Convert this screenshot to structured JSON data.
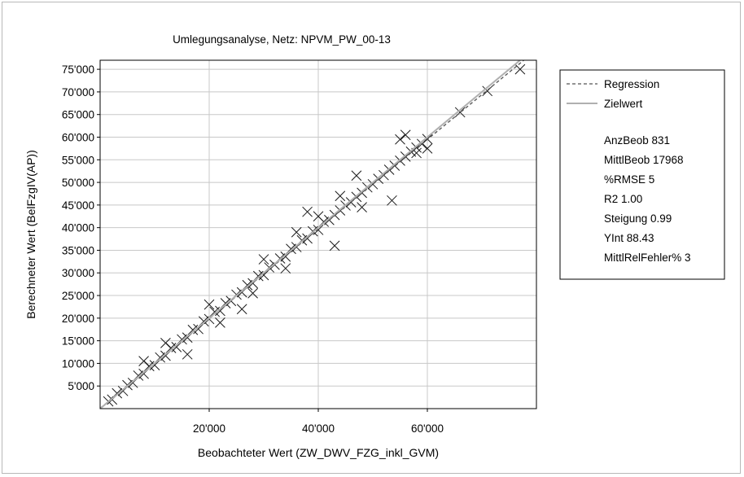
{
  "chart_data": {
    "type": "scatter",
    "title": "Umlegungsanalyse, Netz: NPVM_PW_00-13",
    "xlabel": "Beobachteter Wert (ZW_DWV_FZG_inkl_GVM)",
    "ylabel": "Berechneter Wert (BelFzgIV(AP))",
    "xlim": [
      0,
      80000
    ],
    "ylim": [
      0,
      77000
    ],
    "x_ticks": [
      20000,
      40000,
      60000
    ],
    "x_tick_labels": [
      "20'000",
      "40'000",
      "60'000"
    ],
    "y_ticks": [
      5000,
      10000,
      15000,
      20000,
      25000,
      30000,
      35000,
      40000,
      45000,
      50000,
      55000,
      60000,
      65000,
      70000,
      75000
    ],
    "y_tick_labels": [
      "5'000",
      "10'000",
      "15'000",
      "20'000",
      "25'000",
      "30'000",
      "35'000",
      "40'000",
      "45'000",
      "50'000",
      "55'000",
      "60'000",
      "65'000",
      "70'000",
      "75'000"
    ],
    "grid": true,
    "legend_position": "right",
    "series": [
      {
        "name": "Regression",
        "line": [
          [
            0,
            88.43
          ],
          [
            80000,
            79288.43
          ]
        ],
        "style": "dashed"
      },
      {
        "name": "Zielwert",
        "line": [
          [
            0,
            0
          ],
          [
            80000,
            80000
          ]
        ],
        "style": "solid"
      }
    ],
    "points": [
      [
        1500,
        1600
      ],
      [
        2200,
        2000
      ],
      [
        3100,
        3400
      ],
      [
        4200,
        3900
      ],
      [
        5000,
        5200
      ],
      [
        6000,
        5700
      ],
      [
        7000,
        7300
      ],
      [
        8000,
        7700
      ],
      [
        9000,
        9400
      ],
      [
        10000,
        9600
      ],
      [
        11000,
        11300
      ],
      [
        12000,
        11700
      ],
      [
        13000,
        13400
      ],
      [
        14000,
        13600
      ],
      [
        15000,
        15300
      ],
      [
        16000,
        15700
      ],
      [
        17000,
        17400
      ],
      [
        18000,
        17600
      ],
      [
        19000,
        19300
      ],
      [
        20000,
        19800
      ],
      [
        21000,
        21400
      ],
      [
        22000,
        21600
      ],
      [
        23000,
        23300
      ],
      [
        24000,
        23800
      ],
      [
        25000,
        25200
      ],
      [
        26000,
        25700
      ],
      [
        27000,
        27300
      ],
      [
        28000,
        27700
      ],
      [
        29000,
        29300
      ],
      [
        30000,
        29500
      ],
      [
        31000,
        31200
      ],
      [
        32000,
        31800
      ],
      [
        33000,
        33200
      ],
      [
        34000,
        33600
      ],
      [
        35000,
        35300
      ],
      [
        36000,
        35700
      ],
      [
        37000,
        37200
      ],
      [
        38000,
        37600
      ],
      [
        39000,
        39200
      ],
      [
        40000,
        39500
      ],
      [
        41000,
        41300
      ],
      [
        42000,
        41700
      ],
      [
        43000,
        42800
      ],
      [
        44000,
        43800
      ],
      [
        45000,
        44900
      ],
      [
        46000,
        45600
      ],
      [
        47000,
        46800
      ],
      [
        48000,
        47700
      ],
      [
        49000,
        48900
      ],
      [
        50000,
        49600
      ],
      [
        51000,
        50800
      ],
      [
        52000,
        51600
      ],
      [
        53000,
        52800
      ],
      [
        54000,
        53700
      ],
      [
        55000,
        54800
      ],
      [
        56000,
        55700
      ],
      [
        57000,
        56800
      ],
      [
        58000,
        57700
      ],
      [
        59000,
        58500
      ],
      [
        60000,
        59600
      ],
      [
        66000,
        65500
      ],
      [
        71000,
        70200
      ],
      [
        77000,
        75000
      ],
      [
        53500,
        46000
      ],
      [
        43000,
        36000
      ],
      [
        38000,
        43500
      ],
      [
        47000,
        51500
      ],
      [
        55000,
        59500
      ],
      [
        58000,
        56500
      ],
      [
        30000,
        33000
      ],
      [
        26000,
        22000
      ],
      [
        20000,
        23000
      ],
      [
        16000,
        12000
      ],
      [
        34000,
        31000
      ],
      [
        36000,
        39000
      ],
      [
        44000,
        47000
      ],
      [
        48000,
        44500
      ],
      [
        12000,
        14500
      ],
      [
        8000,
        10500
      ],
      [
        28000,
        25500
      ],
      [
        60000,
        57500
      ],
      [
        56000,
        60500
      ],
      [
        40000,
        42500
      ],
      [
        22000,
        19000
      ]
    ]
  },
  "legend": {
    "regression_label": "Regression",
    "zielwert_label": "Zielwert",
    "stats": [
      "AnzBeob 831",
      "MittlBeob 17968",
      "%RMSE 5",
      "R2 1.00",
      "Steigung 0.99",
      "YInt 88.43",
      "MittlRelFehler% 3"
    ]
  },
  "colors": {
    "marker": "#1a1a1a",
    "regression": "#555555",
    "zielwert": "#b0b0b0",
    "grid": "#c8c8c8",
    "plot_border": "#000000"
  }
}
